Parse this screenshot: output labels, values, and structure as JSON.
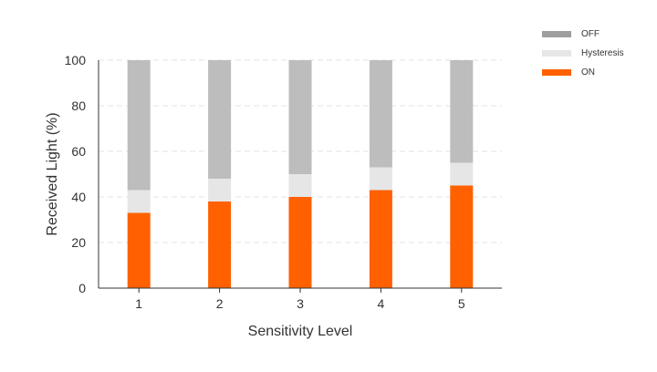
{
  "chart_data": {
    "type": "bar",
    "stacked": true,
    "categories": [
      "1",
      "2",
      "3",
      "4",
      "5"
    ],
    "series": [
      {
        "name": "ON",
        "color": "#ff6000",
        "values": [
          33,
          38,
          40,
          43,
          45
        ]
      },
      {
        "name": "Hysteresis",
        "color": "#e6e6e6",
        "values": [
          10,
          10,
          10,
          10,
          10
        ]
      },
      {
        "name": "OFF",
        "color": "#bdbdbd",
        "values": [
          57,
          52,
          50,
          47,
          45
        ]
      }
    ],
    "legend": {
      "placement": "top-right",
      "items": [
        {
          "name": "OFF",
          "color": "#9e9e9e"
        },
        {
          "name": "Hysteresis",
          "color": "#e6e6e6"
        },
        {
          "name": "ON",
          "color": "#ff6000"
        }
      ]
    },
    "xlabel": "Sensitivity Level",
    "ylabel": "Received Light (%)",
    "ylim": [
      0,
      100
    ],
    "yticks": [
      0,
      20,
      40,
      60,
      80,
      100
    ],
    "grid": true
  }
}
